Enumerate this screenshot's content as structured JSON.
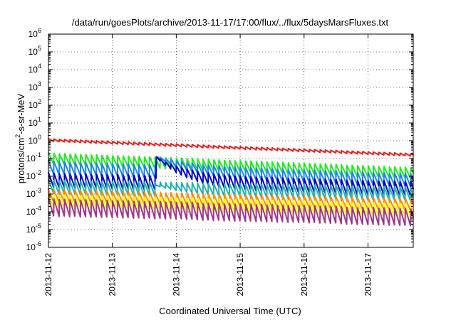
{
  "chart_data": {
    "type": "line",
    "title": "/data/run/goesPlots/archive/2013-11-17/17:00/flux/../flux/5daysMarsFluxes.txt",
    "xlabel": "Coordinated Universal Time (UTC)",
    "ylabel_base": "protons/cm",
    "ylabel_sup": "2",
    "ylabel_rest": "-s-sr-MeV",
    "y_scale": "log",
    "ylim": [
      1e-06,
      1000000.0
    ],
    "y_ticks": [
      {
        "exp": "-6",
        "value": 1e-06
      },
      {
        "exp": "-5",
        "value": 1e-05
      },
      {
        "exp": "-4",
        "value": 0.0001
      },
      {
        "exp": "-3",
        "value": 0.001
      },
      {
        "exp": "-2",
        "value": 0.01
      },
      {
        "exp": "-1",
        "value": 0.1
      },
      {
        "exp": "0",
        "value": 1
      },
      {
        "exp": "1",
        "value": 10
      },
      {
        "exp": "2",
        "value": 100
      },
      {
        "exp": "3",
        "value": 1000
      },
      {
        "exp": "4",
        "value": 10000
      },
      {
        "exp": "5",
        "value": 100000
      },
      {
        "exp": "6",
        "value": 1000000
      }
    ],
    "y_tick_base": "10",
    "xlim": [
      "2013-11-12T00:00",
      "2013-11-17T17:00"
    ],
    "x_ticks": [
      "2013-11-12",
      "2013-11-13",
      "2013-11-14",
      "2013-11-15",
      "2013-11-16",
      "2013-11-17"
    ],
    "grid": true,
    "legend": "none",
    "sawtooth_period_hours": 2,
    "event_time": "2013-11-13T16:30",
    "series": [
      {
        "color": "#ee1c1c",
        "start_value": 1.1,
        "end_value": 0.16,
        "sawtooth_amplitude_decades": 0.15,
        "event_value": null
      },
      {
        "color": "#1cee1c",
        "start_value": 0.1,
        "end_value": 0.015,
        "sawtooth_amplitude_decades": 0.65,
        "event_value": null
      },
      {
        "color": "#1c86ee",
        "start_value": 0.03,
        "end_value": 0.006,
        "sawtooth_amplitude_decades": 0.75,
        "event_value": 0.13
      },
      {
        "color": "#0000cd",
        "start_value": 0.006,
        "end_value": 0.002,
        "sawtooth_amplitude_decades": 0.85,
        "event_value": 0.12
      },
      {
        "color": "#20b2aa",
        "start_value": 0.0025,
        "end_value": 0.001,
        "sawtooth_amplitude_decades": 0.8,
        "event_value": 0.003
      },
      {
        "color": "#ff8c00",
        "start_value": 0.0008,
        "end_value": 0.00025,
        "sawtooth_amplitude_decades": 0.7,
        "event_value": null
      },
      {
        "color": "#ffff00",
        "start_value": 0.0004,
        "end_value": 0.00012,
        "sawtooth_amplitude_decades": 0.75,
        "event_value": null
      },
      {
        "color": "#a0368b",
        "start_value": 0.00018,
        "end_value": 5e-05,
        "sawtooth_amplitude_decades": 1.0,
        "event_value": null
      }
    ]
  }
}
